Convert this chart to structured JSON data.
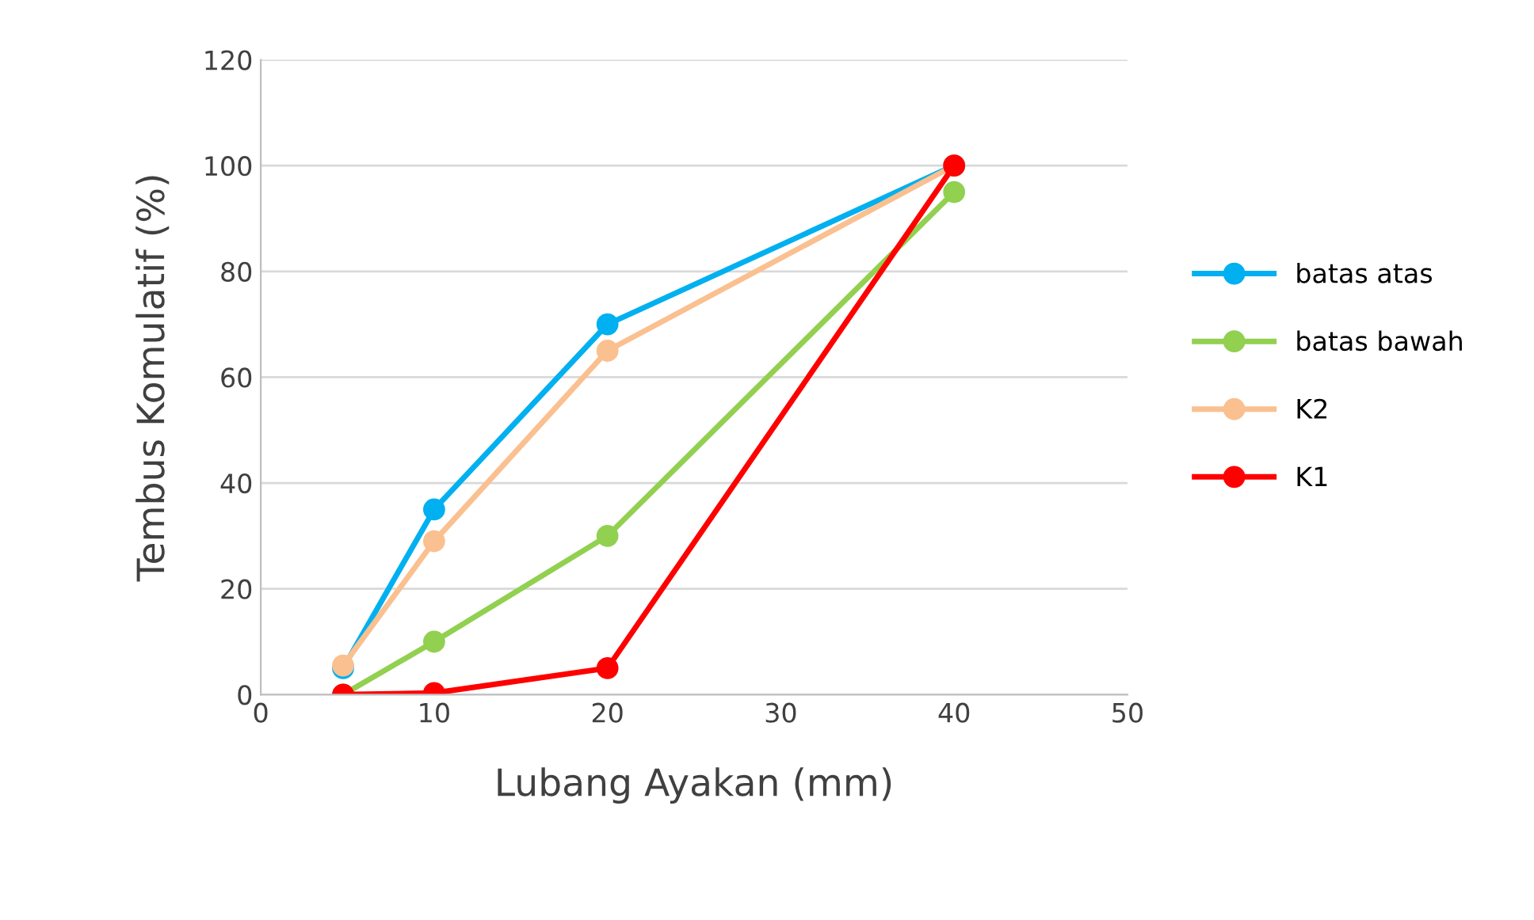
{
  "chart_data": {
    "type": "line",
    "xlabel": "Lubang Ayakan (mm)",
    "ylabel": "Tembus Komulatif (%)",
    "x": [
      4.75,
      10,
      20,
      40
    ],
    "series": [
      {
        "name": "batas atas",
        "color": "#00b0f0",
        "values": [
          5,
          35,
          70,
          100
        ]
      },
      {
        "name": "batas bawah",
        "color": "#92d050",
        "values": [
          0,
          10,
          30,
          95
        ]
      },
      {
        "name": "K2",
        "color": "#fac090",
        "values": [
          5.5,
          29,
          65,
          100
        ]
      },
      {
        "name": "K1",
        "color": "#ff0000",
        "values": [
          0,
          0.3,
          5,
          100
        ]
      }
    ],
    "xlim": [
      0,
      50
    ],
    "xticks": [
      0,
      10,
      20,
      30,
      40,
      50
    ],
    "ylim": [
      0,
      120
    ],
    "yticks": [
      0,
      20,
      40,
      60,
      80,
      100,
      120
    ],
    "grid": "y",
    "legend": "right",
    "marker": "circle",
    "line_style": "solid"
  }
}
